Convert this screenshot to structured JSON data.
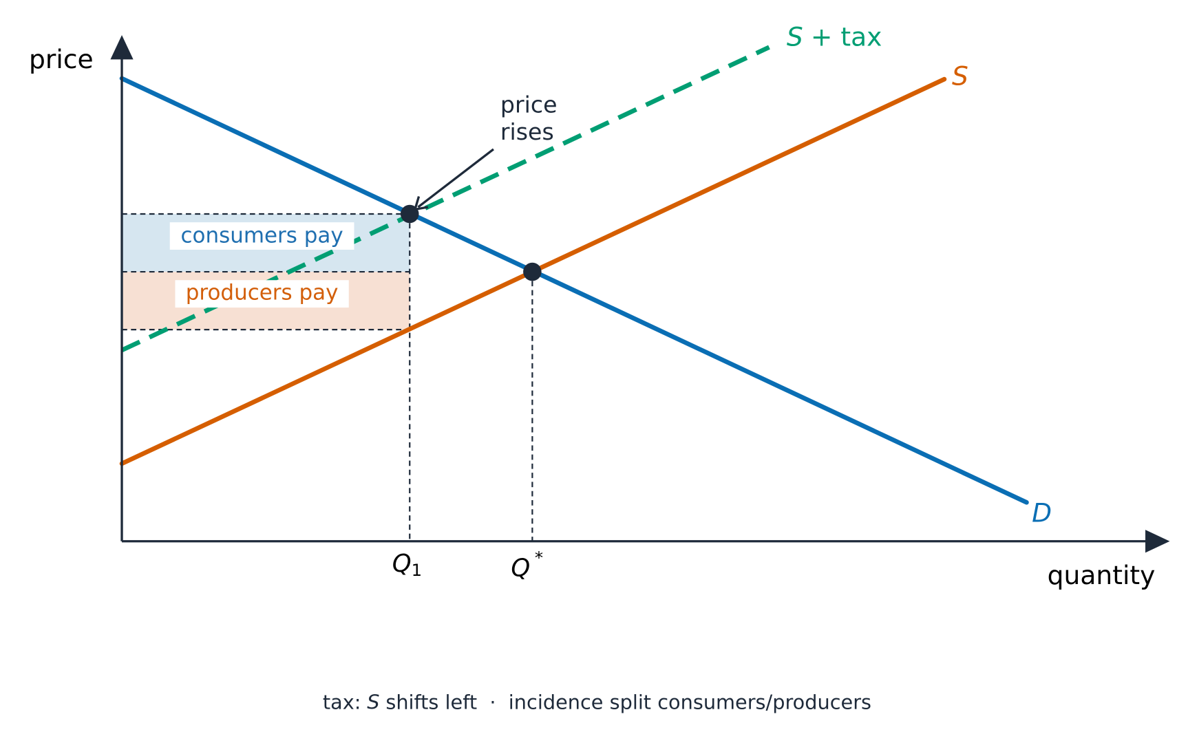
{
  "axes": {
    "y_label": "price",
    "x_label": "quantity"
  },
  "curves": {
    "tax_supply": {
      "letter": "S",
      "rest": "+ tax"
    },
    "supply": "S",
    "demand": "D"
  },
  "annotation": {
    "line1": "price",
    "line2": "rises"
  },
  "regions": {
    "consumers": "consumers pay",
    "producers": "producers pay"
  },
  "quantities": {
    "q1": {
      "letter": "Q",
      "sub": "1"
    },
    "qstar": {
      "letter": "Q",
      "sup": "*"
    }
  },
  "caption": {
    "before": "tax:",
    "letter": "S",
    "after": "shifts left  ·  incidence split consumers/producers"
  }
}
